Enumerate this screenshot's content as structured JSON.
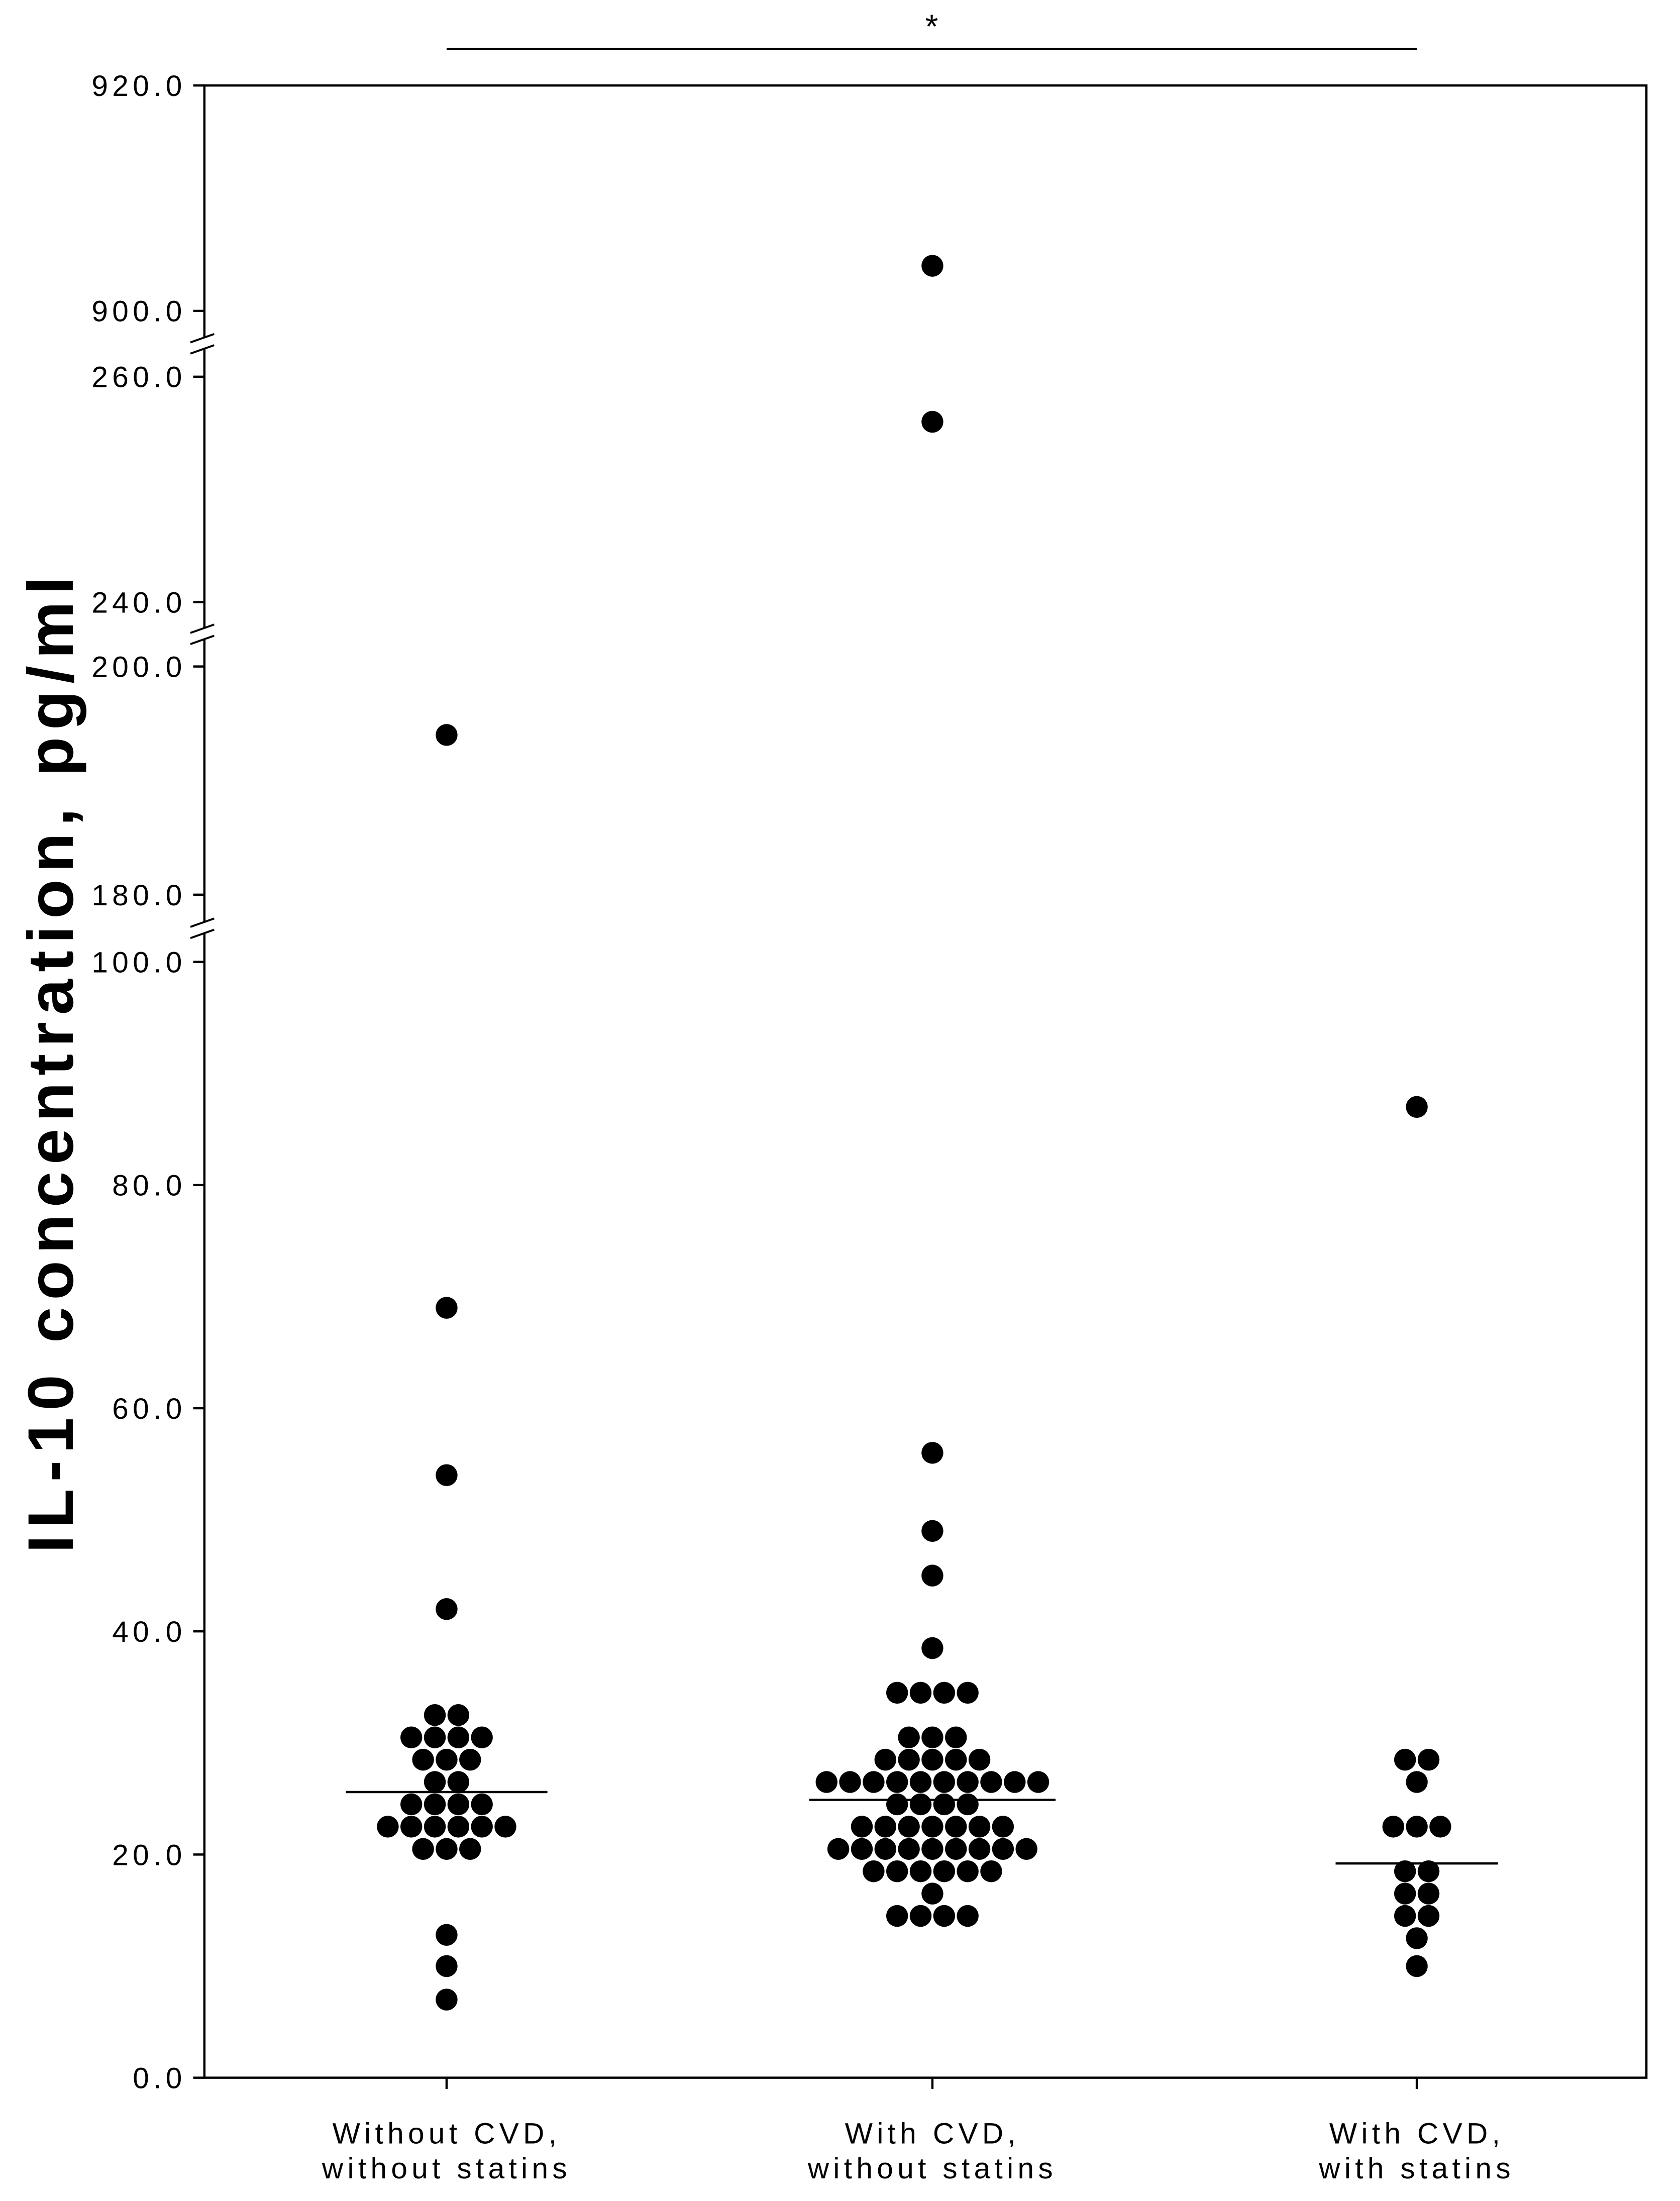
{
  "chart_data": {
    "type": "scatter",
    "title": "",
    "xlabel": "",
    "ylabel": "IL-10 concentration, pg/ml",
    "ylim": [
      0,
      920
    ],
    "y_segments": [
      {
        "range": [
          0,
          100
        ],
        "ticks": [
          0,
          20,
          40,
          60,
          80,
          100
        ],
        "tick_labels": [
          "0.0",
          "20.0",
          "40.0",
          "60.0",
          "80.0",
          "100.0"
        ]
      },
      {
        "range": [
          180,
          200
        ],
        "ticks": [
          180,
          200
        ],
        "tick_labels": [
          "180.0",
          "200.0"
        ]
      },
      {
        "range": [
          240,
          260
        ],
        "ticks": [
          240,
          260
        ],
        "tick_labels": [
          "240.0",
          "260.0"
        ]
      },
      {
        "range": [
          900,
          920
        ],
        "ticks": [
          900,
          920
        ],
        "tick_labels": [
          "900.0",
          "920.0"
        ]
      }
    ],
    "groups": [
      {
        "label_lines": [
          "Without CVD,",
          "without statins"
        ],
        "median": 25.6,
        "values": [
          194,
          69,
          54,
          42,
          32.5,
          32.5,
          30.5,
          30.5,
          30.5,
          30.5,
          28.5,
          28.5,
          28.5,
          26.5,
          26.5,
          24.5,
          24.5,
          24.5,
          24.5,
          22.5,
          22.5,
          22.5,
          22.5,
          22.5,
          22.5,
          20.5,
          20.5,
          20.5,
          12.8,
          10,
          7
        ]
      },
      {
        "label_lines": [
          "With CVD,",
          "without statins"
        ],
        "median": 24.9,
        "values": [
          904,
          256,
          56,
          49,
          45,
          38.5,
          34.5,
          34.5,
          34.5,
          34.5,
          30.5,
          30.5,
          30.5,
          28.5,
          28.5,
          28.5,
          28.5,
          28.5,
          26.5,
          26.5,
          26.5,
          26.5,
          26.5,
          26.5,
          26.5,
          26.5,
          26.5,
          26.5,
          24.5,
          24.5,
          24.5,
          24.5,
          22.5,
          22.5,
          22.5,
          22.5,
          22.5,
          22.5,
          22.5,
          20.5,
          20.5,
          20.5,
          20.5,
          20.5,
          20.5,
          20.5,
          20.5,
          20.5,
          18.5,
          18.5,
          18.5,
          18.5,
          18.5,
          18.5,
          16.5,
          14.5,
          14.5,
          14.5,
          14.5
        ]
      },
      {
        "label_lines": [
          "With CVD,",
          "with statins"
        ],
        "median": 19.2,
        "values": [
          87,
          28.5,
          28.5,
          26.5,
          22.5,
          22.5,
          22.5,
          18.5,
          18.5,
          16.5,
          16.5,
          14.5,
          14.5,
          12.5,
          10
        ]
      }
    ],
    "significance": [
      {
        "groups": [
          0,
          2
        ],
        "label": "*"
      }
    ],
    "colors": {
      "points": "#000000",
      "lines": "#000000",
      "background": "#ffffff"
    }
  }
}
